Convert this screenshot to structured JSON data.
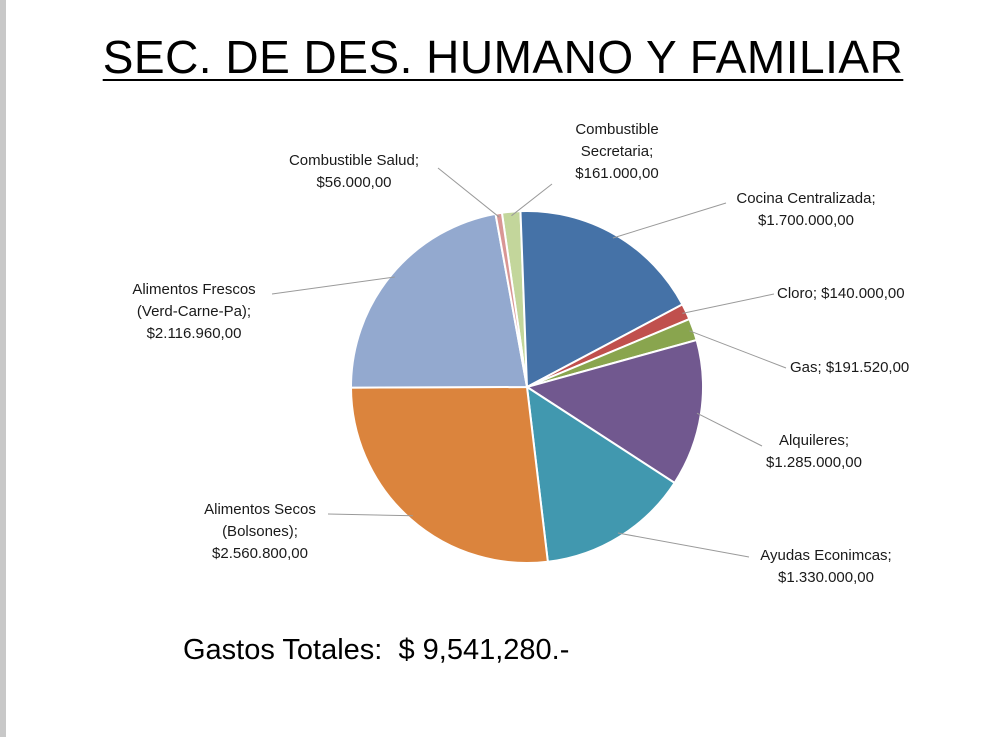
{
  "slide": {
    "title": "SEC. DE DES. HUMANO Y FAMILIAR",
    "total_label": "Gastos Totales:",
    "total_value": "$ 9,541,280.-"
  },
  "chart_data": {
    "type": "pie",
    "title": "",
    "slices": [
      {
        "name": "Combustible Secretaria",
        "value": 161000,
        "label_lines": [
          "Combustible",
          "Secretaria;",
          "$161.000,00"
        ],
        "color": "#C3D69B"
      },
      {
        "name": "Cocina Centralizada",
        "value": 1700000,
        "label_lines": [
          "Cocina Centralizada;",
          "$1.700.000,00"
        ],
        "color": "#4572A7"
      },
      {
        "name": "Cloro",
        "value": 140000,
        "label_lines": [
          "Cloro;  $140.000,00"
        ],
        "color": "#C0504D"
      },
      {
        "name": "Gas",
        "value": 191520,
        "label_lines": [
          "Gas;  $191.520,00"
        ],
        "color": "#89A54E"
      },
      {
        "name": "Alquileres",
        "value": 1285000,
        "label_lines": [
          "Alquileres;",
          "$1.285.000,00"
        ],
        "color": "#71588F"
      },
      {
        "name": "Ayudas Econimcas",
        "value": 1330000,
        "label_lines": [
          "Ayudas Econimcas;",
          "$1.330.000,00"
        ],
        "color": "#4198AF"
      },
      {
        "name": "Alimentos Secos (Bolsones)",
        "value": 2560800,
        "label_lines": [
          "Alimentos Secos",
          "(Bolsones);",
          "$2.560.800,00"
        ],
        "color": "#DB843D"
      },
      {
        "name": "Alimentos Frescos (Verd-Carne-Pa)",
        "value": 2116960,
        "label_lines": [
          "Alimentos Frescos",
          "(Verd-Carne-Pa);",
          "$2.116.960,00"
        ],
        "color": "#93A9CF"
      },
      {
        "name": "Combustible Salud",
        "value": 56000,
        "label_lines": [
          "Combustible Salud;",
          "$56.000,00"
        ],
        "color": "#D99694"
      }
    ]
  }
}
